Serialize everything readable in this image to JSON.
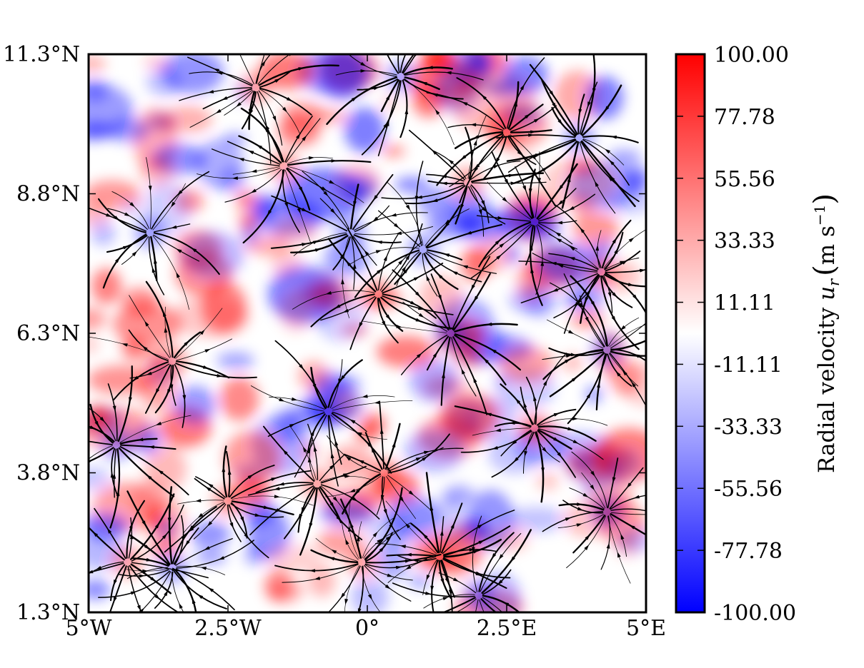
{
  "chart_data": {
    "type": "heatmap",
    "title": "",
    "overlay": "streamlines",
    "x_ticks": [
      "5°W",
      "2.5°W",
      "0°",
      "2.5°E",
      "5°E"
    ],
    "x_tick_values": [
      -5,
      -2.5,
      0,
      2.5,
      5
    ],
    "y_ticks": [
      "1.3°N",
      "3.8°N",
      "6.3°N",
      "8.8°N",
      "11.3°N"
    ],
    "y_tick_values": [
      1.3,
      3.8,
      6.3,
      8.8,
      11.3
    ],
    "xlim": [
      -5,
      5
    ],
    "ylim": [
      1.3,
      11.3
    ],
    "colorbar": {
      "label": "Radial velocity u_r (m s⁻¹)",
      "label_main": "Radial velocity ",
      "label_symbol": "u",
      "label_sub": "r",
      "label_units": "m s",
      "label_exp": "−1",
      "ticks": [
        "100.00",
        "77.78",
        "55.56",
        "33.33",
        "11.11",
        "-11.11",
        "-33.33",
        "-55.56",
        "-77.78",
        "-100.00"
      ],
      "tick_values": [
        100,
        77.78,
        55.56,
        33.33,
        11.11,
        -11.11,
        -33.33,
        -55.56,
        -77.78,
        -100
      ],
      "range": [
        -100,
        100
      ],
      "colormap": [
        "#0000ff",
        "#ffffff",
        "#ff0000"
      ]
    },
    "cell_centers": [
      {
        "lon": -3.9,
        "lat": 8.1,
        "sign": -1
      },
      {
        "lon": -3.5,
        "lat": 5.8,
        "sign": 1
      },
      {
        "lon": -2.5,
        "lat": 3.3,
        "sign": 1
      },
      {
        "lon": -4.3,
        "lat": 2.2,
        "sign": 1
      },
      {
        "lon": -0.7,
        "lat": 4.9,
        "sign": -1
      },
      {
        "lon": 0.2,
        "lat": 7.0,
        "sign": 1
      },
      {
        "lon": 1.0,
        "lat": 7.8,
        "sign": -1
      },
      {
        "lon": 1.5,
        "lat": 6.3,
        "sign": -1
      },
      {
        "lon": 3.0,
        "lat": 4.6,
        "sign": 1
      },
      {
        "lon": 4.2,
        "lat": 7.4,
        "sign": 1
      },
      {
        "lon": 4.3,
        "lat": 6.0,
        "sign": -1
      },
      {
        "lon": 2.5,
        "lat": 9.9,
        "sign": 1
      },
      {
        "lon": 3.8,
        "lat": 9.8,
        "sign": -1
      },
      {
        "lon": 3.0,
        "lat": 8.3,
        "sign": -1
      },
      {
        "lon": -1.5,
        "lat": 9.3,
        "sign": 1
      },
      {
        "lon": -2.0,
        "lat": 10.7,
        "sign": 1
      },
      {
        "lon": 0.6,
        "lat": 10.9,
        "sign": -1
      },
      {
        "lon": -0.9,
        "lat": 3.6,
        "sign": 1
      },
      {
        "lon": 0.3,
        "lat": 3.8,
        "sign": 1
      },
      {
        "lon": 1.3,
        "lat": 2.3,
        "sign": 1
      },
      {
        "lon": -0.1,
        "lat": 2.2,
        "sign": 1
      },
      {
        "lon": 2.0,
        "lat": 1.6,
        "sign": -1
      },
      {
        "lon": 4.3,
        "lat": 3.1,
        "sign": -1
      },
      {
        "lon": -4.5,
        "lat": 4.3,
        "sign": -1
      },
      {
        "lon": 1.8,
        "lat": 9.0,
        "sign": 1
      },
      {
        "lon": -0.3,
        "lat": 8.1,
        "sign": -1
      },
      {
        "lon": -3.5,
        "lat": 2.1,
        "sign": -1
      }
    ]
  }
}
